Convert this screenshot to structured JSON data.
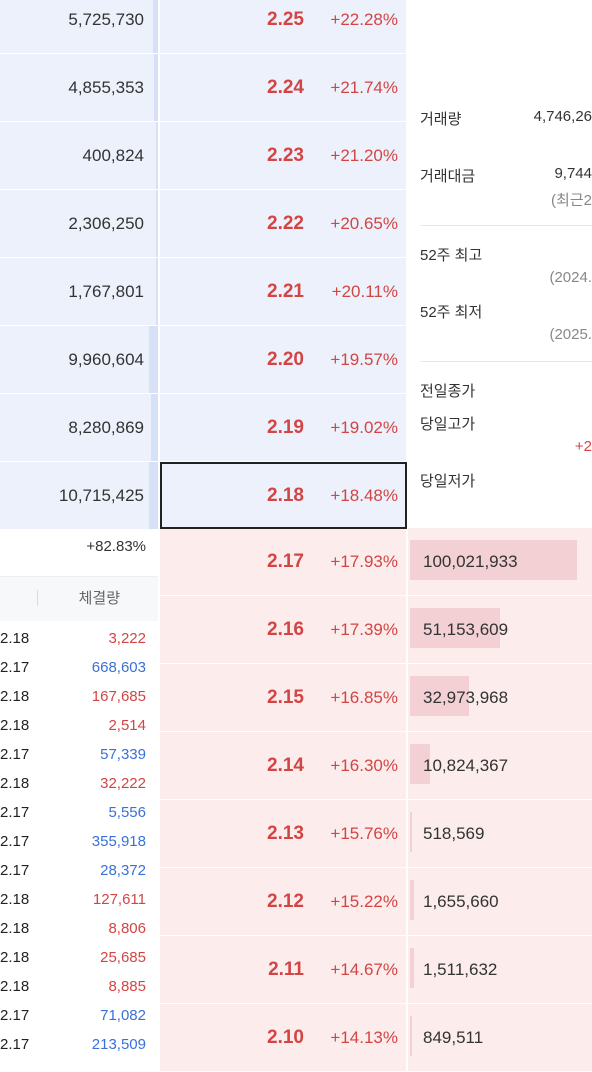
{
  "ask_rows": [
    {
      "volume": "5,725,730",
      "price": "2.25",
      "rate": "+22.28%",
      "bar": 0.06
    },
    {
      "volume": "4,855,353",
      "price": "2.24",
      "rate": "+21.74%",
      "bar": 0.05
    },
    {
      "volume": "400,824",
      "price": "2.23",
      "rate": "+21.20%",
      "bar": 0.01
    },
    {
      "volume": "2,306,250",
      "price": "2.22",
      "rate": "+20.65%",
      "bar": 0.02
    },
    {
      "volume": "1,767,801",
      "price": "2.21",
      "rate": "+20.11%",
      "bar": 0.02
    },
    {
      "volume": "9,960,604",
      "price": "2.20",
      "rate": "+19.57%",
      "bar": 0.11
    },
    {
      "volume": "8,280,869",
      "price": "2.19",
      "rate": "+19.02%",
      "bar": 0.09
    },
    {
      "volume": "10,715,425",
      "price": "2.18",
      "rate": "+18.48%",
      "bar": 0.11
    }
  ],
  "bid_rows": [
    {
      "price": "2.17",
      "rate": "+17.93%",
      "volume": "100,021,933",
      "bar": 0.93
    },
    {
      "price": "2.16",
      "rate": "+17.39%",
      "volume": "51,153,609",
      "bar": 0.5
    },
    {
      "price": "2.15",
      "rate": "+16.85%",
      "volume": "32,973,968",
      "bar": 0.33
    },
    {
      "price": "2.14",
      "rate": "+16.30%",
      "volume": "10,824,367",
      "bar": 0.11
    },
    {
      "price": "2.13",
      "rate": "+15.76%",
      "volume": "518,569",
      "bar": 0.01
    },
    {
      "price": "2.12",
      "rate": "+15.22%",
      "volume": "1,655,660",
      "bar": 0.02
    },
    {
      "price": "2.11",
      "rate": "+14.67%",
      "volume": "1,511,632",
      "bar": 0.02
    },
    {
      "price": "2.10",
      "rate": "+14.13%",
      "volume": "849,511",
      "bar": 0.01
    }
  ],
  "left_panel": {
    "change_pct": "+82.83%",
    "ticks_header": "체결량",
    "ticks": [
      {
        "price": "2.18",
        "volume": "3,222",
        "dir": "up"
      },
      {
        "price": "2.17",
        "volume": "668,603",
        "dir": "down"
      },
      {
        "price": "2.18",
        "volume": "167,685",
        "dir": "up"
      },
      {
        "price": "2.18",
        "volume": "2,514",
        "dir": "up"
      },
      {
        "price": "2.17",
        "volume": "57,339",
        "dir": "down"
      },
      {
        "price": "2.18",
        "volume": "32,222",
        "dir": "up"
      },
      {
        "price": "2.17",
        "volume": "5,556",
        "dir": "down"
      },
      {
        "price": "2.17",
        "volume": "355,918",
        "dir": "down"
      },
      {
        "price": "2.17",
        "volume": "28,372",
        "dir": "down"
      },
      {
        "price": "2.18",
        "volume": "127,611",
        "dir": "up"
      },
      {
        "price": "2.18",
        "volume": "8,806",
        "dir": "up"
      },
      {
        "price": "2.18",
        "volume": "25,685",
        "dir": "up"
      },
      {
        "price": "2.18",
        "volume": "8,885",
        "dir": "up"
      },
      {
        "price": "2.17",
        "volume": "71,082",
        "dir": "down"
      },
      {
        "price": "2.17",
        "volume": "213,509",
        "dir": "down"
      }
    ]
  },
  "info": {
    "volume_label": "거래량",
    "volume_value": "4,746,26",
    "amount_label": "거래대금",
    "amount_value": "9,744",
    "amount_sub": "(최근2",
    "high52_label": "52주 최고",
    "high52_sub": "(2024.",
    "low52_label": "52주 최저",
    "low52_sub": "(2025.",
    "prev_close_label": "전일종가",
    "day_high_label": "당일고가",
    "day_high_sub": "+2",
    "day_low_label": "당일저가"
  },
  "colors": {
    "up": "#d24545",
    "down": "#3a70d8",
    "ask_bg": "#edf1fb",
    "bid_bg": "#fcecec"
  }
}
